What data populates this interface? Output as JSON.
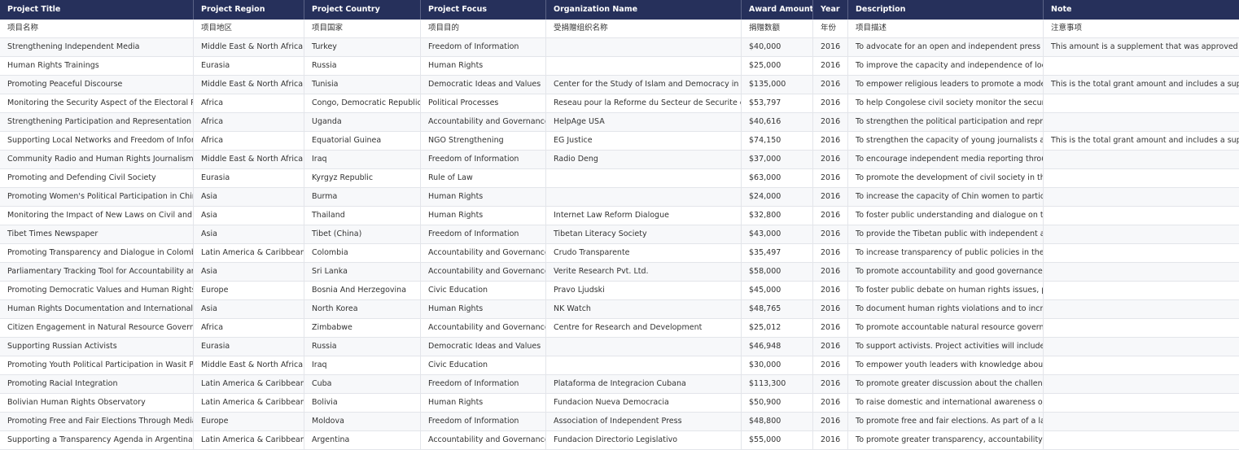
{
  "table": {
    "header": [
      "Project Title",
      "Project Region",
      "Project Country",
      "Project Focus",
      "Organization Name",
      "Award Amount",
      "Year",
      "Description",
      "Note"
    ],
    "subheader": [
      "项目名称",
      "项目地区",
      "项目国家",
      "项目目的",
      "受捐赠组织名称",
      "捐赠数额",
      "年份",
      "项目描述",
      "注意事项"
    ],
    "rows": [
      [
        "Strengthening Independent Media",
        "Middle East & North Africa",
        "Turkey",
        "Freedom of Information",
        null,
        "$40,000",
        "2016",
        "To advocate for an open and independent press a...",
        "This amount is a supplement that was approved s..."
      ],
      [
        "Human Rights Trainings",
        "Eurasia",
        "Russia",
        "Human Rights",
        null,
        "$25,000",
        "2016",
        "To improve the capacity and independence of loc...",
        null
      ],
      [
        "Promoting Peaceful Discourse",
        "Middle East & North Africa",
        "Tunisia",
        "Democratic Ideas and Values",
        "Center for the Study of Islam and Democracy in T...",
        "$135,000",
        "2016",
        "To empower religious leaders to promote a mode...",
        "This is the total grant amount and includes a sup..."
      ],
      [
        "Monitoring the Security Aspect of the Electoral Pr...",
        "Africa",
        "Congo, Democratic Republic",
        "Political Processes",
        "Reseau pour la Reforme du Secteur de Securite et...",
        "$53,797",
        "2016",
        "To help Congolese civil society monitor the securi...",
        null
      ],
      [
        "Strengthening Participation and Representation o...",
        "Africa",
        "Uganda",
        "Accountability and Governance",
        "HelpAge USA",
        "$40,616",
        "2016",
        "To strengthen the political participation and repre...",
        null
      ],
      [
        "Supporting Local Networks and Freedom of Infor...",
        "Africa",
        "Equatorial Guinea",
        "NGO Strengthening",
        "EG Justice",
        "$74,150",
        "2016",
        "To strengthen the capacity of young journalists an...",
        "This is the total grant amount and includes a sup..."
      ],
      [
        "Community Radio and Human Rights Journalism i...",
        "Middle East & North Africa",
        "Iraq",
        "Freedom of Information",
        "Radio Deng",
        "$37,000",
        "2016",
        "To encourage independent media reporting throu...",
        null
      ],
      [
        "Promoting and Defending Civil Society",
        "Eurasia",
        "Kyrgyz Republic",
        "Rule of Law",
        null,
        "$63,000",
        "2016",
        "To promote the development of civil society in th...",
        null
      ],
      [
        "Promoting Women's Political Participation in Chin...",
        "Asia",
        "Burma",
        "Human Rights",
        null,
        "$24,000",
        "2016",
        "To increase the capacity of Chin women to partici...",
        null
      ],
      [
        "Monitoring the Impact of New Laws on Civil and ...",
        "Asia",
        "Thailand",
        "Human Rights",
        "Internet Law Reform Dialogue",
        "$32,800",
        "2016",
        "To foster public understanding and dialogue on t...",
        null
      ],
      [
        "Tibet Times Newspaper",
        "Asia",
        "Tibet (China)",
        "Freedom of Information",
        "Tibetan Literacy Society",
        "$43,000",
        "2016",
        "To provide the Tibetan public with independent a...",
        null
      ],
      [
        "Promoting Transparency and Dialogue in Colombi...",
        "Latin America & Caribbean",
        "Colombia",
        "Accountability and Governance",
        "Crudo Transparente",
        "$35,497",
        "2016",
        "To increase transparency of public policies in the ...",
        null
      ],
      [
        "Parliamentary Tracking Tool for Accountability an...",
        "Asia",
        "Sri Lanka",
        "Accountability and Governance",
        "Verite Research Pvt. Ltd.",
        "$58,000",
        "2016",
        "To promote accountability and good governance ...",
        null
      ],
      [
        "Promoting Democratic Values and Human Rights ...",
        "Europe",
        "Bosnia And Herzegovina",
        "Civic Education",
        "Pravo Ljudski",
        "$45,000",
        "2016",
        "To foster public debate on human rights issues, p...",
        null
      ],
      [
        "Human Rights Documentation and International ...",
        "Asia",
        "North Korea",
        "Human Rights",
        "NK Watch",
        "$48,765",
        "2016",
        "To document human rights violations and to incre...",
        null
      ],
      [
        "Citizen Engagement in Natural Resource Governa...",
        "Africa",
        "Zimbabwe",
        "Accountability and Governance",
        "Centre for Research and Development",
        "$25,012",
        "2016",
        "To promote accountable natural resource govern...",
        null
      ],
      [
        "Supporting Russian Activists",
        "Eurasia",
        "Russia",
        "Democratic Ideas and Values",
        null,
        "$46,948",
        "2016",
        "To support activists. Project activities will include ...",
        null
      ],
      [
        "Promoting Youth Political Participation in Wasit Pr...",
        "Middle East & North Africa",
        "Iraq",
        "Civic Education",
        null,
        "$30,000",
        "2016",
        "To empower youth leaders with knowledge about...",
        null
      ],
      [
        "Promoting Racial Integration",
        "Latin America & Caribbean",
        "Cuba",
        "Freedom of Information",
        "Plataforma de Integracion Cubana",
        "$113,300",
        "2016",
        "To promote greater discussion about the challeng...",
        null
      ],
      [
        "Bolivian Human Rights Observatory",
        "Latin America & Caribbean",
        "Bolivia",
        "Human Rights",
        "Fundacion Nueva Democracia",
        "$50,900",
        "2016",
        "To raise domestic and international awareness on ...",
        null
      ],
      [
        "Promoting Free and Fair Elections Through Media...",
        "Europe",
        "Moldova",
        "Freedom of Information",
        "Association of Independent Press",
        "$48,800",
        "2016",
        "To promote free and fair elections. As part of a lar...",
        null
      ],
      [
        "Supporting a Transparency Agenda in Argentina",
        "Latin America & Caribbean",
        "Argentina",
        "Accountability and Governance",
        "Fundacion Directorio Legislativo",
        "$55,000",
        "2016",
        "To promote greater transparency, accountability, ...",
        null
      ]
    ]
  }
}
